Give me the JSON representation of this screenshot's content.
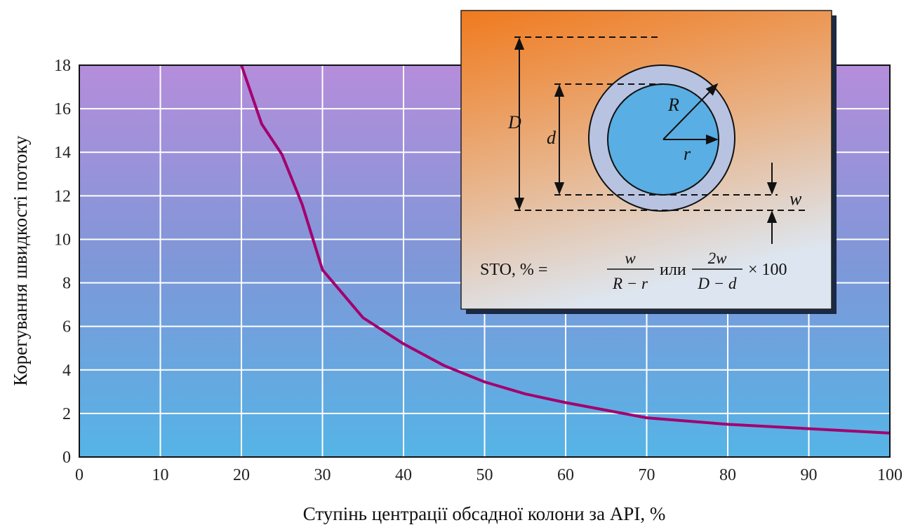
{
  "chart_data": {
    "type": "line",
    "x_label": "Ступінь центрації обсадної колони за API, %",
    "y_label": "Корегування швидкості потоку",
    "x": [
      20,
      22.5,
      25,
      27.5,
      30,
      35,
      40,
      45,
      50,
      55,
      60,
      70,
      80,
      90,
      100
    ],
    "series": [
      {
        "color": "#a3006e",
        "values": [
          18,
          15.3,
          13.9,
          11.6,
          8.6,
          6.4,
          5.2,
          4.2,
          3.45,
          2.9,
          2.5,
          1.8,
          1.5,
          1.3,
          1.1
        ]
      }
    ],
    "xlim": [
      0,
      100
    ],
    "xticks": [
      0,
      10,
      20,
      30,
      40,
      50,
      60,
      70,
      80,
      90,
      100
    ],
    "ylim": [
      0,
      18
    ],
    "yticks": [
      0,
      2,
      4,
      6,
      8,
      10,
      12,
      14,
      16,
      18
    ],
    "grid": true,
    "inset": {
      "labels": {
        "D": "D",
        "d": "d",
        "R": "R",
        "r": "r",
        "w": "w"
      },
      "formula": {
        "lead": "STO, % =",
        "num1": "w",
        "den1": "R − r",
        "or": "или",
        "num2": "2w",
        "den2": "D − d",
        "tail": "× 100"
      }
    }
  }
}
